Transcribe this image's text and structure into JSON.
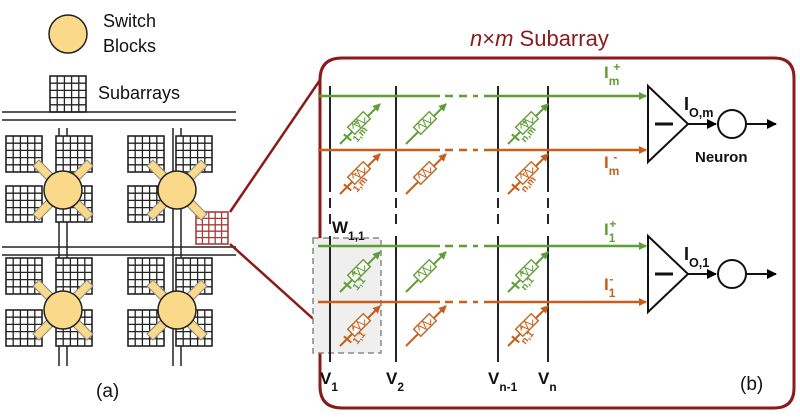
{
  "legend": {
    "switch_blocks": [
      "Switch",
      "Blocks"
    ],
    "subarrays": "Subarrays"
  },
  "panel_a": {
    "caption": "(a)"
  },
  "panel_b": {
    "title_n": "n",
    "title_x": "×",
    "title_m": "m",
    "title_rest": " Subarray",
    "caption": "(b)",
    "neuron_label": "Neuron",
    "weight_label": {
      "base": "W",
      "sub": "1,1"
    },
    "voltage_labels": [
      {
        "base": "V",
        "sub": "1"
      },
      {
        "base": "V",
        "sub": "2"
      },
      {
        "base": "V",
        "sub": "n-1"
      },
      {
        "base": "V",
        "sub": "n"
      }
    ],
    "current_lines": [
      {
        "base": "I",
        "sub": "m",
        "sup": "+"
      },
      {
        "base": "I",
        "sub": "m",
        "sup": "-"
      },
      {
        "base": "I",
        "sub": "1",
        "sup": "+"
      },
      {
        "base": "I",
        "sub": "1",
        "sup": "-"
      }
    ],
    "output_labels": [
      {
        "base": "I",
        "sub": "O,m"
      },
      {
        "base": "I",
        "sub": "O,1"
      }
    ],
    "device_labels": [
      {
        "base": "I",
        "sub": "1,m",
        "sup": "+"
      },
      {
        "base": "I",
        "sub": "1,m",
        "sup": "-"
      },
      {
        "base": "I",
        "sub": "n,m",
        "sup": "+"
      },
      {
        "base": "I",
        "sub": "n,m",
        "sup": "-"
      },
      {
        "base": "I",
        "sub": "1,1",
        "sup": "+"
      },
      {
        "base": "I",
        "sub": "1,1",
        "sup": "-"
      },
      {
        "base": "I",
        "sub": "n,1",
        "sup": "+"
      },
      {
        "base": "I",
        "sub": "n,1",
        "sup": "-"
      }
    ],
    "colors": {
      "frame": "#8b1a1a",
      "positive_line": "#5e9e35",
      "negative_line": "#c85f18",
      "switch_block": "#fbd98a",
      "highlight_cell": "#a93c3c"
    }
  }
}
